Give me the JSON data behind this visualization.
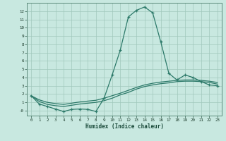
{
  "title": "",
  "xlabel": "Humidex (Indice chaleur)",
  "ylabel": "",
  "bg_color": "#c8e8e0",
  "line_color": "#2d7a6a",
  "grid_color": "#a0c8bc",
  "xlim": [
    -0.5,
    23.5
  ],
  "ylim": [
    -0.6,
    13.0
  ],
  "yticks": [
    0,
    1,
    2,
    3,
    4,
    5,
    6,
    7,
    8,
    9,
    10,
    11,
    12
  ],
  "ytick_labels": [
    "-0",
    "1",
    "2",
    "3",
    "4",
    "5",
    "6",
    "7",
    "8",
    "9",
    "10",
    "11",
    "12"
  ],
  "xticks": [
    0,
    1,
    2,
    3,
    4,
    5,
    6,
    7,
    8,
    9,
    10,
    11,
    12,
    13,
    14,
    15,
    16,
    17,
    18,
    19,
    20,
    21,
    22,
    23
  ],
  "line1_x": [
    0,
    1,
    2,
    3,
    4,
    5,
    6,
    7,
    8,
    9,
    10,
    11,
    12,
    13,
    14,
    15,
    16,
    17,
    18,
    19,
    20,
    21,
    22,
    23
  ],
  "line1_y": [
    1.8,
    0.8,
    0.5,
    0.2,
    -0.1,
    0.15,
    0.2,
    0.15,
    -0.1,
    1.5,
    4.3,
    7.3,
    11.3,
    12.1,
    12.5,
    11.8,
    8.3,
    4.5,
    3.7,
    4.3,
    4.0,
    3.5,
    3.1,
    3.0
  ],
  "line2_x": [
    0,
    1,
    2,
    3,
    4,
    5,
    6,
    7,
    8,
    9,
    10,
    11,
    12,
    13,
    14,
    15,
    16,
    17,
    18,
    19,
    20,
    21,
    22,
    23
  ],
  "line2_y": [
    1.8,
    1.3,
    1.0,
    0.85,
    0.75,
    0.9,
    1.05,
    1.15,
    1.25,
    1.5,
    1.8,
    2.1,
    2.45,
    2.8,
    3.1,
    3.3,
    3.45,
    3.55,
    3.65,
    3.7,
    3.7,
    3.65,
    3.55,
    3.4
  ],
  "line3_x": [
    0,
    1,
    2,
    3,
    4,
    5,
    6,
    7,
    8,
    9,
    10,
    11,
    12,
    13,
    14,
    15,
    16,
    17,
    18,
    19,
    20,
    21,
    22,
    23
  ],
  "line3_y": [
    1.8,
    1.1,
    0.75,
    0.6,
    0.5,
    0.65,
    0.8,
    0.9,
    1.0,
    1.2,
    1.5,
    1.9,
    2.2,
    2.6,
    2.9,
    3.1,
    3.25,
    3.35,
    3.5,
    3.55,
    3.55,
    3.5,
    3.4,
    3.2
  ]
}
